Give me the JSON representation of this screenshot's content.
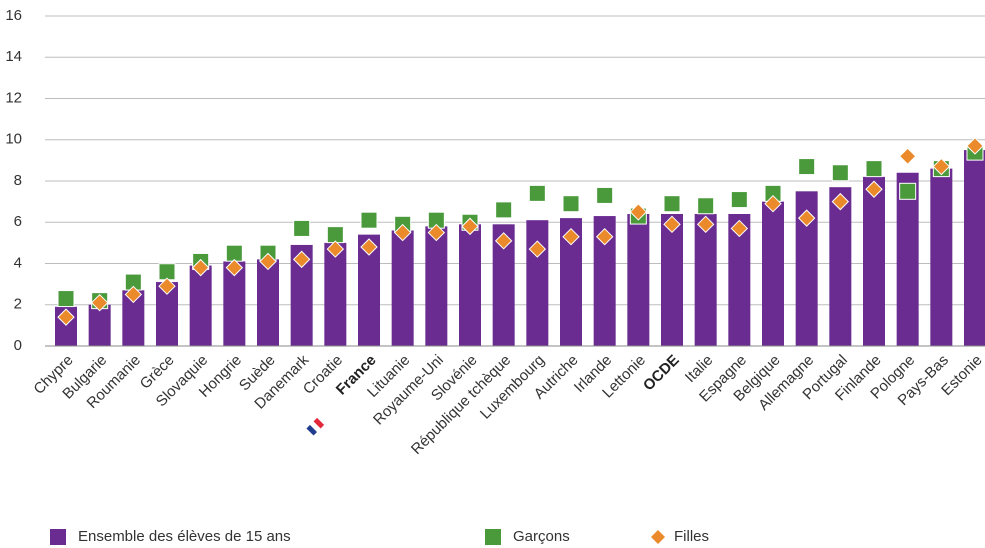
{
  "chart_data": {
    "type": "bar",
    "categories": [
      "Chypre",
      "Bulgarie",
      "Roumanie",
      "Grèce",
      "Slovaquie",
      "Hongrie",
      "Suède",
      "Danemark",
      "Croatie",
      "France",
      "Lituanie",
      "Royaume-Uni",
      "Slovénie",
      "République tchèque",
      "Luxembourg",
      "Autriche",
      "Irlande",
      "Lettonie",
      "OCDE",
      "Italie",
      "Espagne",
      "Belgique",
      "Allemagne",
      "Portugal",
      "Finlande",
      "Pologne",
      "Pays-Bas",
      "Estonie"
    ],
    "series": [
      {
        "name": "Ensemble des élèves de 15 ans",
        "color": "#6a2c91",
        "marker": "bar",
        "values": [
          1.9,
          2.0,
          2.7,
          3.1,
          3.9,
          4.1,
          4.2,
          4.9,
          5.0,
          5.4,
          5.6,
          5.8,
          5.9,
          5.9,
          6.1,
          6.2,
          6.3,
          6.4,
          6.4,
          6.4,
          6.4,
          7.0,
          7.5,
          7.7,
          8.2,
          8.4,
          8.6,
          9.5
        ]
      },
      {
        "name": "Garçons",
        "color": "#4a9a3c",
        "marker": "square",
        "values": [
          2.3,
          2.2,
          3.1,
          3.6,
          4.1,
          4.5,
          4.5,
          5.7,
          5.4,
          6.1,
          5.9,
          6.1,
          6.0,
          6.6,
          7.4,
          6.9,
          7.3,
          6.3,
          6.9,
          6.8,
          7.1,
          7.4,
          8.7,
          8.4,
          8.6,
          7.5,
          8.6,
          9.4
        ]
      },
      {
        "name": "Filles",
        "color": "#ea8a2a",
        "marker": "diamond",
        "values": [
          1.4,
          2.1,
          2.5,
          2.9,
          3.8,
          3.8,
          4.1,
          4.2,
          4.7,
          4.8,
          5.5,
          5.5,
          5.8,
          5.1,
          4.7,
          5.3,
          5.3,
          6.5,
          5.9,
          5.9,
          5.7,
          6.9,
          6.2,
          7.0,
          7.6,
          9.2,
          8.7,
          9.7
        ]
      }
    ],
    "ylim": [
      0,
      16
    ],
    "yticks": [
      0,
      2,
      4,
      6,
      8,
      10,
      12,
      14,
      16
    ],
    "grid": true
  }
}
